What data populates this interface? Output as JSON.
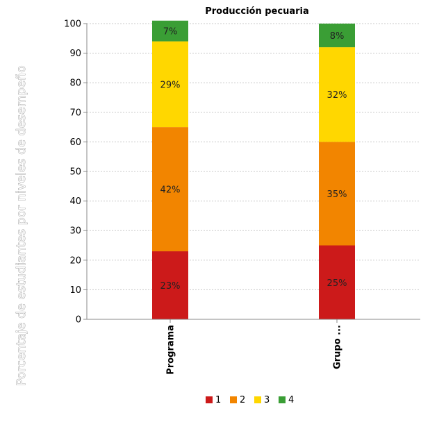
{
  "chart_data": {
    "type": "bar",
    "stacked": true,
    "title": "Producción pecuaria",
    "xlabel": "",
    "ylabel": "Porcentaje de estudiantes por niveles de desempeño",
    "ylim": [
      0,
      100
    ],
    "yticks": [
      0,
      10,
      20,
      30,
      40,
      50,
      60,
      70,
      80,
      90,
      100
    ],
    "grid": true,
    "legend_position": "bottom",
    "categories": [
      "Programa",
      "Grupo ..."
    ],
    "series": [
      {
        "name": "1",
        "color": "#cc1a1a",
        "values": [
          23,
          25
        ],
        "labels": [
          "23%",
          "25%"
        ]
      },
      {
        "name": "2",
        "color": "#f28500",
        "values": [
          42,
          35
        ],
        "labels": [
          "42%",
          "35%"
        ]
      },
      {
        "name": "3",
        "color": "#ffd700",
        "values": [
          29,
          32
        ],
        "labels": [
          "29%",
          "32%"
        ]
      },
      {
        "name": "4",
        "color": "#3a9e35",
        "values": [
          7,
          8
        ],
        "labels": [
          "7%",
          "8%"
        ]
      }
    ]
  }
}
